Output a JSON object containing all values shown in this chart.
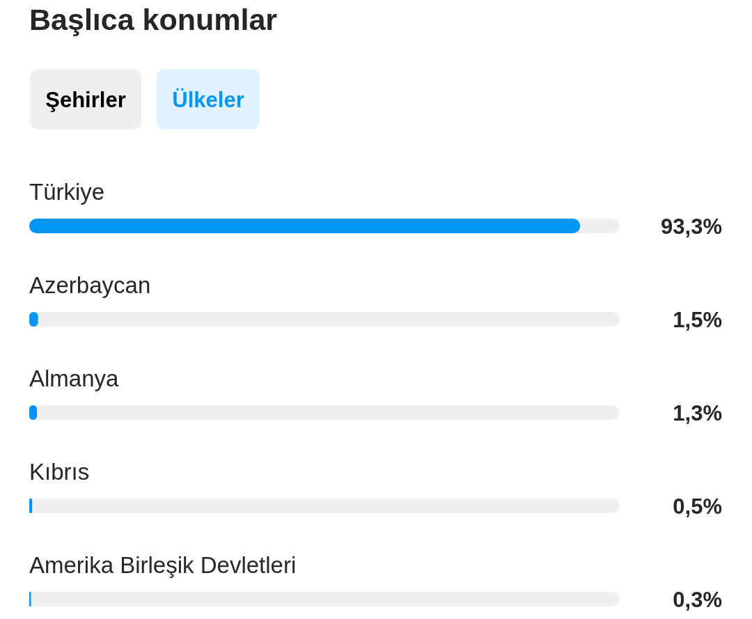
{
  "chart_data": {
    "type": "bar",
    "orientation": "horizontal",
    "title": "Başlıca konumlar",
    "annotations": [
      "Şehirler",
      "Ülkeler"
    ],
    "categories": [
      "Türkiye",
      "Azerbaycan",
      "Almanya",
      "Kıbrıs",
      "Amerika Birleşik Devletleri"
    ],
    "values": [
      93.3,
      1.5,
      1.3,
      0.5,
      0.3
    ],
    "value_labels": [
      "93,3%",
      "1,5%",
      "1,3%",
      "0,5%",
      "0,3%"
    ],
    "color": "#0095f6",
    "xlim": [
      0,
      100
    ],
    "tick_labels": "y"
  }
}
